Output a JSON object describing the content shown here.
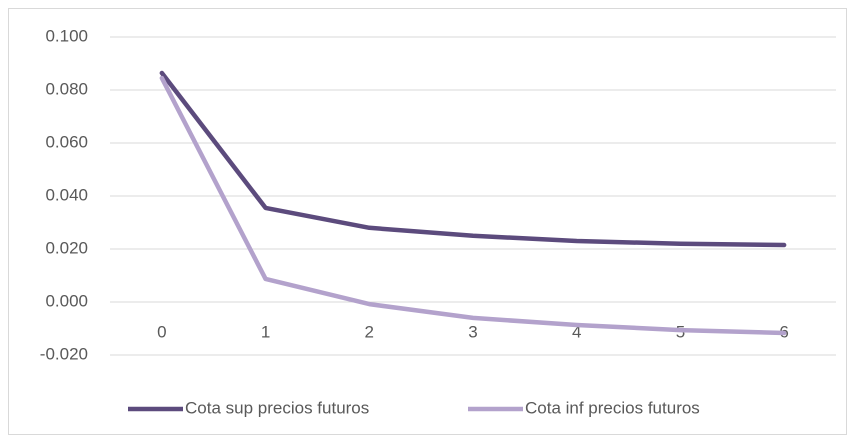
{
  "chart_data": {
    "type": "line",
    "categories": [
      "0",
      "1",
      "2",
      "3",
      "4",
      "5",
      "6"
    ],
    "series": [
      {
        "name": "Cota sup precios futuros",
        "color": "#5c4b7d",
        "values": [
          0.0864,
          0.0355,
          0.028,
          0.025,
          0.023,
          0.022,
          0.0215
        ]
      },
      {
        "name": "Cota inf precios futuros",
        "color": "#b3a2cc",
        "values": [
          0.0845,
          0.0087,
          -0.0008,
          -0.006,
          -0.0087,
          -0.0106,
          -0.0117
        ]
      }
    ],
    "ylim": [
      -0.02,
      0.1
    ],
    "yticks": [
      {
        "value": 0.1,
        "label": "0.100"
      },
      {
        "value": 0.08,
        "label": "0.080"
      },
      {
        "value": 0.06,
        "label": "0.060"
      },
      {
        "value": 0.04,
        "label": "0.040"
      },
      {
        "value": 0.02,
        "label": "0.020"
      },
      {
        "value": 0,
        "label": "0.000"
      },
      {
        "value": -0.02,
        "label": "-0.020"
      }
    ],
    "grid": true,
    "legend": "bottom"
  }
}
